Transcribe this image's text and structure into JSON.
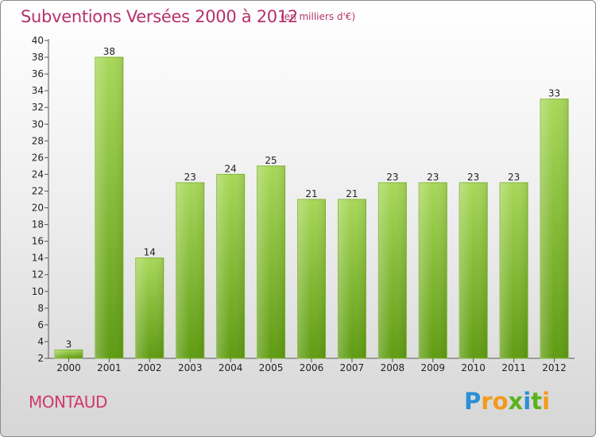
{
  "header": {
    "title": "Subventions Versées 2000 à 2012",
    "subtitle": "(en milliers d'€)"
  },
  "footer": {
    "commune": "MONTAUD"
  },
  "logo": {
    "letters": [
      {
        "ch": "P",
        "color": "#2b8fd6"
      },
      {
        "ch": "r",
        "color": "#f39a1c"
      },
      {
        "ch": "o",
        "color": "#f39a1c"
      },
      {
        "ch": "x",
        "color": "#5ab31c"
      },
      {
        "ch": "i",
        "color": "#2b8fd6"
      },
      {
        "ch": "t",
        "color": "#5ab31c"
      },
      {
        "ch": "i",
        "color": "#f39a1c"
      }
    ]
  },
  "colors": {
    "bar_light": "#a8d85a",
    "bar_dark": "#5f9b12",
    "title": "#b5316a",
    "axis": "#555555"
  },
  "chart_data": {
    "type": "bar",
    "title": "Subventions Versées 2000 à 2012",
    "subtitle": "(en milliers d'€)",
    "categories": [
      "2000",
      "2001",
      "2002",
      "2003",
      "2004",
      "2005",
      "2006",
      "2007",
      "2008",
      "2009",
      "2010",
      "2011",
      "2012"
    ],
    "values": [
      3,
      38,
      14,
      23,
      24,
      25,
      21,
      21,
      23,
      23,
      23,
      23,
      33
    ],
    "ylim": [
      2,
      40
    ],
    "yticks": [
      2,
      4,
      6,
      8,
      10,
      12,
      14,
      16,
      18,
      20,
      22,
      24,
      26,
      28,
      30,
      32,
      34,
      36,
      38,
      40
    ],
    "grid": false,
    "legend": "none"
  }
}
